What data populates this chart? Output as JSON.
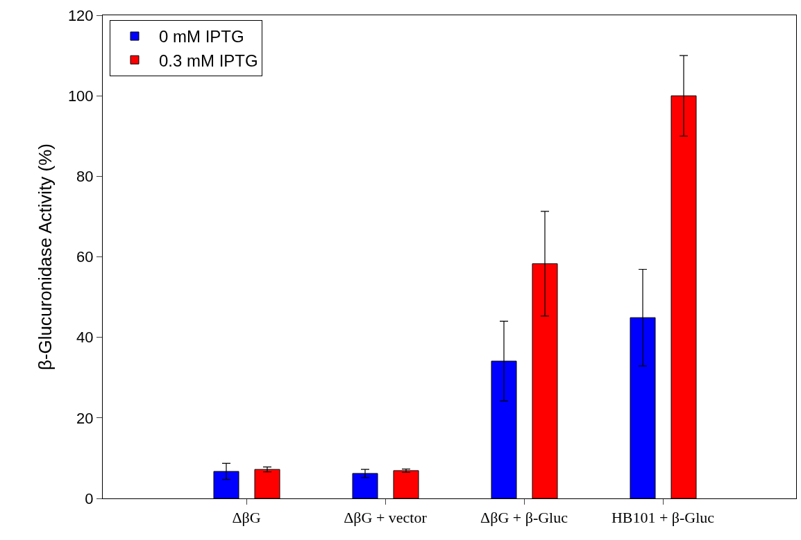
{
  "chart_data": {
    "type": "bar",
    "ylabel": "β-Glucuronidase Activity (%)",
    "categories": [
      "ΔβG",
      "ΔβG + vector",
      "ΔβG + β-Gluc",
      "HB101 + β-Gluc"
    ],
    "series": [
      {
        "name": "0 mM IPTG",
        "color": "#0000ff",
        "values": [
          6.7,
          6.2,
          34.1,
          44.9
        ],
        "errors": [
          2,
          1,
          9.9,
          12
        ]
      },
      {
        "name": "0.3 mM IPTG",
        "color": "#ff0000",
        "values": [
          7.2,
          6.9,
          58.3,
          100
        ],
        "errors": [
          0.6,
          0.4,
          13,
          10
        ]
      }
    ],
    "ylim": [
      0,
      120
    ],
    "yticks": [
      0,
      20,
      40,
      60,
      80,
      100,
      120
    ],
    "legend": "top left"
  }
}
